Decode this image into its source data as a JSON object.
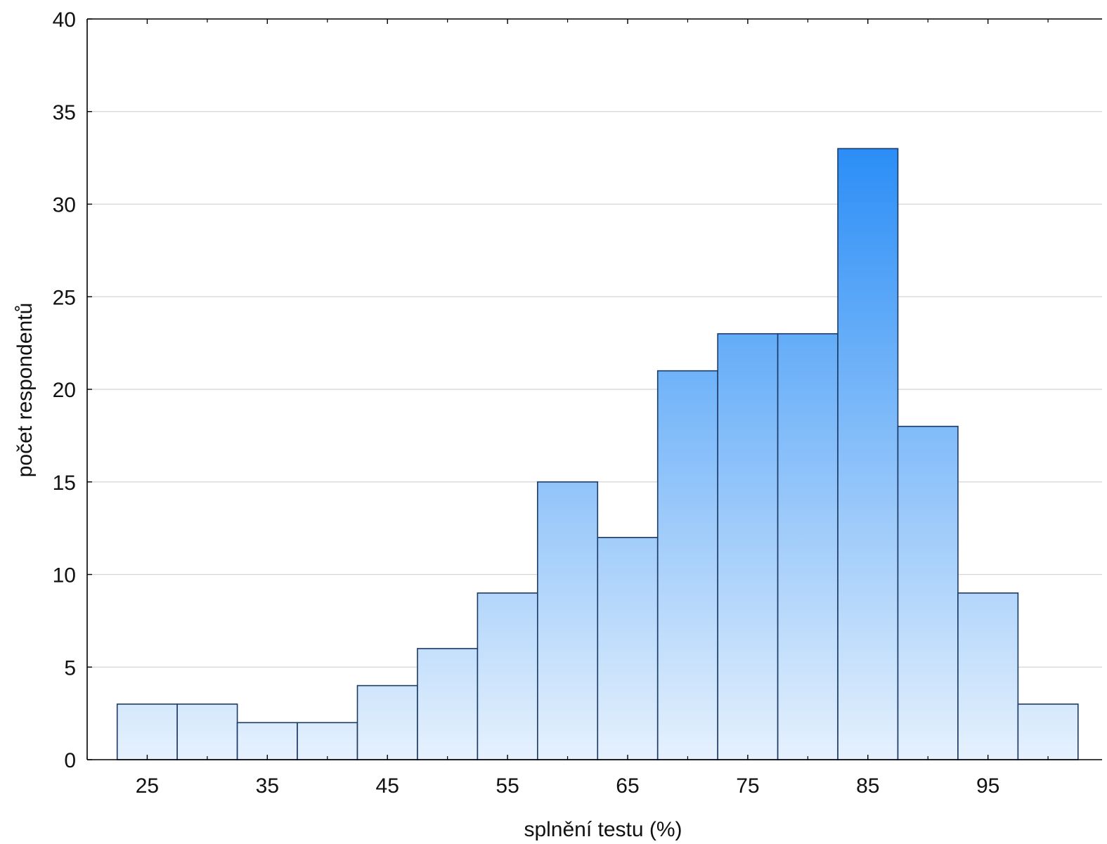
{
  "chart_data": {
    "type": "bar",
    "title": "",
    "xlabel": "splnění testu (%)",
    "ylabel": "počet respondentů",
    "bin_width": 5,
    "bins": [
      {
        "x_start": 22.5,
        "x_end": 27.5,
        "count": 3
      },
      {
        "x_start": 27.5,
        "x_end": 32.5,
        "count": 3
      },
      {
        "x_start": 32.5,
        "x_end": 37.5,
        "count": 2
      },
      {
        "x_start": 37.5,
        "x_end": 42.5,
        "count": 2
      },
      {
        "x_start": 42.5,
        "x_end": 47.5,
        "count": 4
      },
      {
        "x_start": 47.5,
        "x_end": 52.5,
        "count": 6
      },
      {
        "x_start": 52.5,
        "x_end": 57.5,
        "count": 9
      },
      {
        "x_start": 57.5,
        "x_end": 62.5,
        "count": 15
      },
      {
        "x_start": 62.5,
        "x_end": 67.5,
        "count": 12
      },
      {
        "x_start": 67.5,
        "x_end": 72.5,
        "count": 21
      },
      {
        "x_start": 72.5,
        "x_end": 77.5,
        "count": 23
      },
      {
        "x_start": 77.5,
        "x_end": 82.5,
        "count": 23
      },
      {
        "x_start": 82.5,
        "x_end": 87.5,
        "count": 33
      },
      {
        "x_start": 87.5,
        "x_end": 92.5,
        "count": 18
      },
      {
        "x_start": 92.5,
        "x_end": 97.5,
        "count": 9
      },
      {
        "x_start": 97.5,
        "x_end": 102.5,
        "count": 3
      }
    ],
    "xlim": [
      20,
      104.5
    ],
    "ylim": [
      0,
      40
    ],
    "x_ticks": [
      25,
      35,
      45,
      55,
      65,
      75,
      85,
      95
    ],
    "x_minor_ticks": [
      20,
      30,
      40,
      50,
      60,
      70,
      80,
      90,
      100
    ],
    "y_ticks": [
      0,
      5,
      10,
      15,
      20,
      25,
      30,
      35,
      40
    ],
    "grid": "horizontal",
    "legend": "none",
    "colors": {
      "bar_top": "#2b8ef6",
      "bar_bottom": "#e6f1fd",
      "bar_edge": "#1c3a66",
      "grid": "#d4d4d4",
      "axis": "#000000"
    }
  }
}
